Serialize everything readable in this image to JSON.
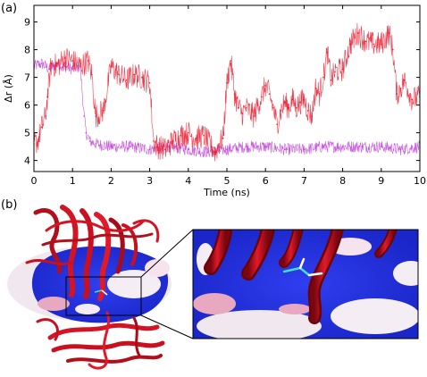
{
  "figure": {
    "panel_a_label": "(a)",
    "panel_b_label": "(b)"
  },
  "colors": {
    "series_red": "#e8192c",
    "series_magenta": "#c040d8",
    "protein_ribbon": "#c8101e",
    "surface_blue": "#2233dd",
    "surface_white": "#f4eef4",
    "surface_pink": "#e7a8c0"
  },
  "chart_data": {
    "type": "line",
    "xlabel": "Time (ns)",
    "ylabel": "Δr (Å)",
    "xlim": [
      0,
      10
    ],
    "ylim": [
      3.6,
      9.6
    ],
    "x_ticks": [
      "0",
      "1",
      "2",
      "3",
      "4",
      "5",
      "6",
      "7",
      "8",
      "9",
      "10"
    ],
    "y_ticks": [
      "4",
      "5",
      "6",
      "7",
      "8",
      "9"
    ],
    "grid": false,
    "series": [
      {
        "color": "#e8192c",
        "x": [
          0.0,
          0.1,
          0.2,
          0.3,
          0.35,
          0.45,
          0.6,
          0.8,
          1.0,
          1.2,
          1.4,
          1.5,
          1.6,
          1.8,
          2.0,
          2.2,
          2.4,
          2.6,
          2.8,
          3.0,
          3.1,
          3.2,
          3.4,
          3.6,
          3.8,
          4.0,
          4.2,
          4.4,
          4.6,
          4.7,
          4.8,
          4.9,
          5.0,
          5.1,
          5.2,
          5.3,
          5.4,
          5.5,
          5.7,
          5.8,
          5.9,
          6.0,
          6.1,
          6.2,
          6.3,
          6.4,
          6.5,
          6.6,
          6.7,
          6.8,
          6.9,
          7.0,
          7.1,
          7.2,
          7.3,
          7.4,
          7.5,
          7.6,
          7.7,
          7.8,
          8.0,
          8.2,
          8.4,
          8.6,
          8.8,
          9.0,
          9.2,
          9.3,
          9.4,
          9.5,
          9.6,
          9.8,
          10.0
        ],
        "y": [
          4.6,
          4.7,
          5.2,
          5.6,
          6.3,
          7.5,
          7.4,
          7.7,
          7.6,
          7.4,
          7.6,
          7.1,
          5.6,
          5.8,
          7.4,
          7.1,
          6.9,
          7.1,
          7.0,
          6.8,
          4.7,
          4.5,
          4.4,
          4.7,
          4.9,
          5.0,
          4.8,
          4.9,
          4.5,
          4.3,
          4.6,
          4.8,
          6.8,
          7.6,
          6.4,
          5.9,
          5.7,
          5.9,
          5.6,
          6.0,
          6.3,
          6.7,
          6.4,
          5.9,
          5.3,
          5.8,
          6.1,
          5.9,
          6.2,
          5.9,
          6.1,
          6.2,
          5.8,
          5.6,
          6.6,
          6.4,
          7.0,
          7.9,
          6.9,
          7.2,
          7.3,
          8.2,
          8.6,
          8.3,
          8.2,
          8.2,
          8.6,
          8.0,
          6.4,
          6.6,
          6.9,
          6.2,
          6.3
        ]
      },
      {
        "color": "#c040d8",
        "x": [
          0.0,
          0.2,
          0.4,
          0.6,
          0.8,
          1.0,
          1.2,
          1.3,
          1.35,
          1.45,
          1.6,
          2.0,
          2.5,
          3.0,
          3.5,
          4.0,
          4.5,
          5.0,
          5.5,
          6.0,
          6.5,
          7.0,
          7.5,
          8.0,
          8.5,
          9.0,
          9.5,
          10.0
        ],
        "y": [
          7.4,
          7.5,
          7.3,
          7.5,
          7.4,
          7.3,
          7.4,
          5.6,
          5.0,
          4.7,
          4.6,
          4.5,
          4.5,
          4.4,
          4.5,
          4.4,
          4.3,
          4.4,
          4.5,
          4.5,
          4.4,
          4.4,
          4.5,
          4.5,
          4.5,
          4.5,
          4.4,
          4.5
        ]
      }
    ]
  }
}
